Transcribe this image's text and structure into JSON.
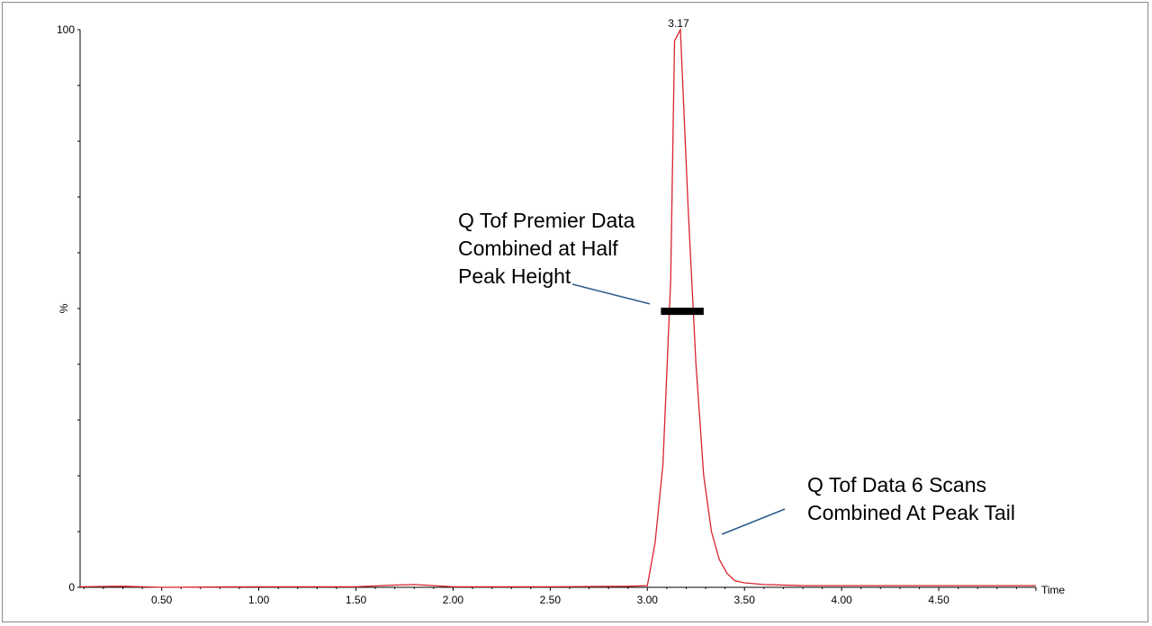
{
  "chart_data": {
    "type": "line",
    "title": "",
    "xlabel": "Time",
    "ylabel": "%",
    "xlim": [
      0.08,
      5.0
    ],
    "ylim": [
      0,
      100
    ],
    "x_ticks": [
      {
        "value": 0.5,
        "label": "0.50"
      },
      {
        "value": 1.0,
        "label": "1.00"
      },
      {
        "value": 1.5,
        "label": "1.50"
      },
      {
        "value": 2.0,
        "label": "2.00"
      },
      {
        "value": 2.5,
        "label": "2.50"
      },
      {
        "value": 3.0,
        "label": "3.00"
      },
      {
        "value": 3.5,
        "label": "3.50"
      },
      {
        "value": 4.0,
        "label": "4.00"
      },
      {
        "value": 4.5,
        "label": "4.50"
      }
    ],
    "y_ticks": [
      {
        "value": 0,
        "label": "0"
      },
      {
        "value": 100,
        "label": "100"
      }
    ],
    "series": [
      {
        "color": "#d9232d",
        "x": [
          0.08,
          0.3,
          0.5,
          1.0,
          1.5,
          1.7,
          1.8,
          1.9,
          2.0,
          2.5,
          2.9,
          3.0,
          3.04,
          3.08,
          3.12,
          3.14,
          3.17,
          3.21,
          3.25,
          3.29,
          3.33,
          3.37,
          3.41,
          3.45,
          3.5,
          3.6,
          3.8,
          4.0,
          4.5,
          5.0
        ],
        "y": [
          0.1,
          0.2,
          0.0,
          0.1,
          0.1,
          0.4,
          0.5,
          0.3,
          0.1,
          0.1,
          0.2,
          0.3,
          8,
          22,
          55,
          98,
          100,
          68,
          40,
          20,
          10,
          5,
          2.5,
          1.2,
          0.8,
          0.5,
          0.3,
          0.3,
          0.3,
          0.3
        ]
      }
    ],
    "peak_label": {
      "x": 3.17,
      "y": 100,
      "text": "3.17"
    },
    "grid": false,
    "annotations": [
      {
        "lines": [
          "Q Tof Premier  Data",
          "Combined at Half",
          "Peak Height"
        ],
        "bar": {
          "x_start": 3.07,
          "x_end": 3.29,
          "y": 49.5
        },
        "pointer": {
          "x": 3.04,
          "y": 50.5
        }
      },
      {
        "lines": [
          "Q Tof  Data 6 Scans",
          "Combined At Peak Tail"
        ],
        "pointer": {
          "x": 3.37,
          "y": 10
        }
      }
    ]
  }
}
